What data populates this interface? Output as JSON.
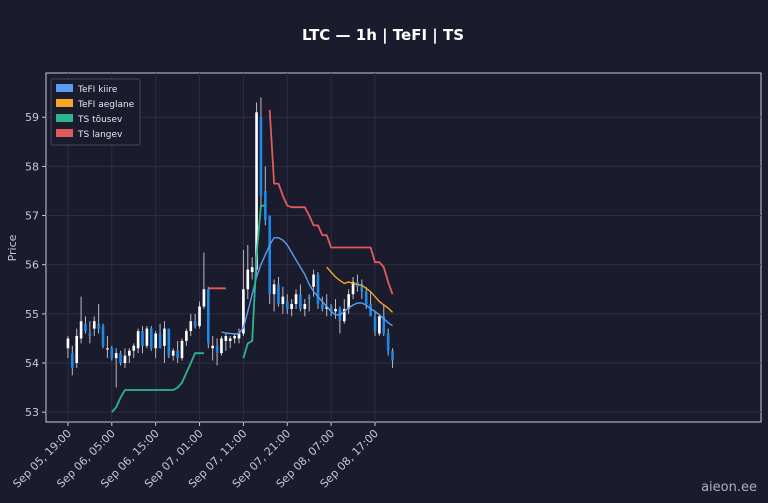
{
  "chart_data": {
    "type": "candlestick",
    "title": "LTC — 1h  |  TeFI  |  TS",
    "ylabel": "Price",
    "xlabel": "",
    "ylim": [
      52.8,
      59.9
    ],
    "yticks": [
      53,
      54,
      55,
      56,
      57,
      58,
      59
    ],
    "xlim": [
      -5,
      158
    ],
    "xticks": [
      {
        "i": 0,
        "label": "Sep 05, 19:00"
      },
      {
        "i": 10,
        "label": "Sep 06, 05:00"
      },
      {
        "i": 20,
        "label": "Sep 06, 15:00"
      },
      {
        "i": 30,
        "label": "Sep 07, 01:00"
      },
      {
        "i": 40,
        "label": "Sep 07, 11:00"
      },
      {
        "i": 50,
        "label": "Sep 07, 21:00"
      },
      {
        "i": 60,
        "label": "Sep 08, 07:00"
      },
      {
        "i": 70,
        "label": "Sep 08, 17:00"
      }
    ],
    "grid": true,
    "legend_position": "top-left",
    "candles": [
      [
        0,
        54.3,
        54.55,
        54.1,
        54.5
      ],
      [
        1,
        54.2,
        54.35,
        53.75,
        53.9
      ],
      [
        2,
        54.0,
        54.7,
        53.9,
        54.55
      ],
      [
        3,
        54.5,
        55.35,
        54.4,
        54.85
      ],
      [
        4,
        54.8,
        54.95,
        54.6,
        54.65
      ],
      [
        5,
        54.6,
        54.85,
        54.4,
        54.55
      ],
      [
        6,
        54.7,
        54.95,
        54.55,
        54.85
      ],
      [
        7,
        54.8,
        55.2,
        54.6,
        54.7
      ],
      [
        8,
        54.75,
        54.8,
        54.3,
        54.35
      ],
      [
        9,
        54.3,
        54.55,
        54.1,
        54.3
      ],
      [
        10,
        54.3,
        54.35,
        54.05,
        54.1
      ],
      [
        11,
        54.1,
        54.3,
        53.5,
        54.2
      ],
      [
        12,
        54.2,
        54.25,
        53.95,
        54.0
      ],
      [
        13,
        54.0,
        54.3,
        53.9,
        54.15
      ],
      [
        14,
        54.15,
        54.3,
        54.0,
        54.25
      ],
      [
        15,
        54.25,
        54.4,
        54.1,
        54.35
      ],
      [
        16,
        54.3,
        54.7,
        54.2,
        54.65
      ],
      [
        17,
        54.65,
        54.75,
        54.2,
        54.35
      ],
      [
        18,
        54.35,
        54.75,
        54.3,
        54.7
      ],
      [
        19,
        54.7,
        54.75,
        54.25,
        54.3
      ],
      [
        20,
        54.3,
        54.65,
        54.1,
        54.6
      ],
      [
        21,
        54.6,
        54.8,
        54.3,
        54.3
      ],
      [
        22,
        54.35,
        54.85,
        54.0,
        54.7
      ],
      [
        23,
        54.7,
        54.7,
        54.1,
        54.15
      ],
      [
        24,
        54.15,
        54.3,
        54.05,
        54.25
      ],
      [
        25,
        54.25,
        54.45,
        54.0,
        54.1
      ],
      [
        26,
        54.1,
        54.5,
        54.05,
        54.45
      ],
      [
        27,
        54.45,
        54.7,
        54.35,
        54.65
      ],
      [
        28,
        54.65,
        55.0,
        54.55,
        54.85
      ],
      [
        29,
        54.85,
        55.0,
        54.7,
        54.75
      ],
      [
        30,
        54.75,
        55.25,
        54.7,
        55.15
      ],
      [
        31,
        55.15,
        56.25,
        55.1,
        55.5
      ],
      [
        32,
        55.5,
        55.55,
        54.3,
        54.4
      ],
      [
        33,
        54.3,
        54.55,
        54.05,
        54.35
      ],
      [
        34,
        54.35,
        54.5,
        53.95,
        54.2
      ],
      [
        35,
        54.2,
        54.55,
        54.15,
        54.5
      ],
      [
        36,
        54.45,
        54.6,
        54.25,
        54.55
      ],
      [
        37,
        54.45,
        54.55,
        54.3,
        54.5
      ],
      [
        38,
        54.5,
        54.6,
        54.4,
        54.55
      ],
      [
        39,
        54.5,
        54.7,
        54.4,
        54.6
      ],
      [
        40,
        54.6,
        56.3,
        54.55,
        55.5
      ],
      [
        41,
        55.5,
        56.4,
        55.3,
        55.9
      ],
      [
        42,
        55.85,
        56.15,
        55.7,
        55.95
      ],
      [
        43,
        55.9,
        59.3,
        55.8,
        59.1
      ],
      [
        44,
        59.0,
        59.4,
        57.2,
        57.4
      ],
      [
        45,
        57.5,
        58.0,
        56.8,
        56.9
      ],
      [
        46,
        57.0,
        57.0,
        55.2,
        55.4
      ],
      [
        47,
        55.4,
        55.7,
        55.05,
        55.6
      ],
      [
        48,
        55.6,
        55.75,
        55.15,
        55.2
      ],
      [
        49,
        55.2,
        55.55,
        55.0,
        55.35
      ],
      [
        50,
        55.25,
        55.4,
        55.0,
        55.1
      ],
      [
        51,
        55.1,
        55.3,
        54.95,
        55.2
      ],
      [
        52,
        55.2,
        55.5,
        55.1,
        55.4
      ],
      [
        53,
        55.4,
        55.6,
        55.05,
        55.1
      ],
      [
        54,
        55.1,
        55.3,
        54.95,
        55.2
      ],
      [
        55,
        55.35,
        55.4,
        55.05,
        55.3
      ],
      [
        56,
        55.55,
        55.9,
        55.35,
        55.8
      ],
      [
        57,
        55.8,
        55.85,
        55.1,
        55.2
      ],
      [
        58,
        55.2,
        55.35,
        55.05,
        55.1
      ],
      [
        59,
        55.1,
        55.4,
        54.95,
        55.15
      ],
      [
        60,
        55.15,
        55.2,
        54.95,
        55.05
      ],
      [
        61,
        55.05,
        55.3,
        54.9,
        55.1
      ],
      [
        62,
        55.1,
        55.15,
        54.6,
        54.85
      ],
      [
        63,
        54.85,
        55.3,
        54.8,
        55.1
      ],
      [
        64,
        55.1,
        55.5,
        55.0,
        55.4
      ],
      [
        65,
        55.4,
        55.75,
        55.3,
        55.65
      ],
      [
        66,
        55.65,
        55.8,
        55.45,
        55.55
      ],
      [
        67,
        55.6,
        55.7,
        55.3,
        55.45
      ],
      [
        68,
        55.45,
        55.55,
        55.1,
        55.2
      ],
      [
        69,
        55.2,
        55.45,
        54.95,
        54.95
      ],
      [
        70,
        54.95,
        55.05,
        54.55,
        54.65
      ],
      [
        71,
        54.6,
        55.0,
        54.55,
        54.95
      ],
      [
        72,
        54.95,
        55.2,
        54.55,
        54.6
      ],
      [
        73,
        54.6,
        54.7,
        54.15,
        54.25
      ],
      [
        74,
        54.25,
        54.3,
        53.9,
        54.05
      ]
    ],
    "series": [
      {
        "name": "TeFI kiire",
        "color": "#5b9cf0",
        "width": 1.4,
        "points": [
          [
            35,
            54.63
          ],
          [
            36,
            54.61
          ],
          [
            37,
            54.6
          ],
          [
            38,
            54.59
          ],
          [
            39,
            54.6
          ],
          [
            40,
            54.72
          ],
          [
            41,
            55.05
          ],
          [
            42,
            55.4
          ],
          [
            43,
            55.75
          ],
          [
            44,
            56.0
          ],
          [
            45,
            56.2
          ],
          [
            46,
            56.4
          ],
          [
            47,
            56.55
          ],
          [
            48,
            56.55
          ],
          [
            49,
            56.5
          ],
          [
            50,
            56.4
          ],
          [
            51,
            56.25
          ],
          [
            52,
            56.1
          ],
          [
            53,
            55.95
          ],
          [
            54,
            55.8
          ],
          [
            55,
            55.6
          ],
          [
            56,
            55.45
          ],
          [
            57,
            55.35
          ],
          [
            58,
            55.25
          ],
          [
            59,
            55.15
          ],
          [
            60,
            55.05
          ],
          [
            61,
            54.98
          ],
          [
            62,
            54.98
          ],
          [
            63,
            55.05
          ],
          [
            64,
            55.12
          ],
          [
            65,
            55.18
          ],
          [
            66,
            55.22
          ],
          [
            67,
            55.22
          ],
          [
            68,
            55.18
          ],
          [
            69,
            55.1
          ],
          [
            70,
            55.05
          ],
          [
            71,
            54.98
          ],
          [
            72,
            54.9
          ],
          [
            73,
            54.82
          ],
          [
            74,
            54.76
          ]
        ]
      },
      {
        "name": "TeFI aeglane",
        "color": "#f5a623",
        "width": 1.4,
        "points": [
          [
            59,
            55.95
          ],
          [
            60,
            55.85
          ],
          [
            61,
            55.75
          ],
          [
            62,
            55.68
          ],
          [
            63,
            55.62
          ],
          [
            64,
            55.65
          ],
          [
            65,
            55.62
          ],
          [
            66,
            55.6
          ],
          [
            67,
            55.58
          ],
          [
            68,
            55.52
          ],
          [
            69,
            55.45
          ],
          [
            70,
            55.35
          ],
          [
            71,
            55.25
          ],
          [
            72,
            55.18
          ],
          [
            73,
            55.12
          ],
          [
            74,
            55.03
          ]
        ]
      },
      {
        "name": "TS tõusev",
        "color": "#2db58e",
        "width": 1.8,
        "points": [
          [
            10,
            53.0
          ],
          [
            11,
            53.1
          ],
          [
            12,
            53.3
          ],
          [
            13,
            53.45
          ],
          [
            14,
            53.45
          ],
          [
            15,
            53.45
          ],
          [
            16,
            53.45
          ],
          [
            17,
            53.45
          ],
          [
            18,
            53.45
          ],
          [
            19,
            53.45
          ],
          [
            20,
            53.45
          ],
          [
            21,
            53.45
          ],
          [
            22,
            53.45
          ],
          [
            23,
            53.45
          ],
          [
            24,
            53.45
          ],
          [
            25,
            53.5
          ],
          [
            26,
            53.6
          ],
          [
            27,
            53.8
          ],
          [
            28,
            54.0
          ],
          [
            29,
            54.2
          ],
          [
            30,
            54.2
          ],
          [
            31,
            54.2
          ],
          [
            null,
            null
          ],
          [
            40,
            54.1
          ],
          [
            41,
            54.4
          ],
          [
            42,
            54.45
          ],
          [
            43,
            56.2
          ],
          [
            44,
            57.2
          ],
          [
            45,
            57.2
          ]
        ]
      },
      {
        "name": "TS langev",
        "color": "#e05c5c",
        "width": 1.8,
        "points": [
          [
            32,
            55.52
          ],
          [
            33,
            55.52
          ],
          [
            34,
            55.52
          ],
          [
            35,
            55.52
          ],
          [
            36,
            55.52
          ],
          [
            null,
            null
          ],
          [
            46,
            59.15
          ],
          [
            47,
            57.65
          ],
          [
            48,
            57.65
          ],
          [
            49,
            57.4
          ],
          [
            50,
            57.2
          ],
          [
            51,
            57.17
          ],
          [
            52,
            57.17
          ],
          [
            53,
            57.17
          ],
          [
            54,
            57.17
          ],
          [
            55,
            57.0
          ],
          [
            56,
            56.8
          ],
          [
            57,
            56.8
          ],
          [
            58,
            56.6
          ],
          [
            59,
            56.6
          ],
          [
            60,
            56.35
          ],
          [
            61,
            56.35
          ],
          [
            62,
            56.35
          ],
          [
            63,
            56.35
          ],
          [
            64,
            56.35
          ],
          [
            65,
            56.35
          ],
          [
            66,
            56.35
          ],
          [
            67,
            56.35
          ],
          [
            68,
            56.35
          ],
          [
            69,
            56.35
          ],
          [
            70,
            56.05
          ],
          [
            71,
            56.05
          ],
          [
            72,
            55.95
          ],
          [
            73,
            55.65
          ],
          [
            74,
            55.4
          ]
        ]
      }
    ],
    "up_color": "#ffffff",
    "down_color": "#1e88e5"
  },
  "watermark": "aieon.ee"
}
